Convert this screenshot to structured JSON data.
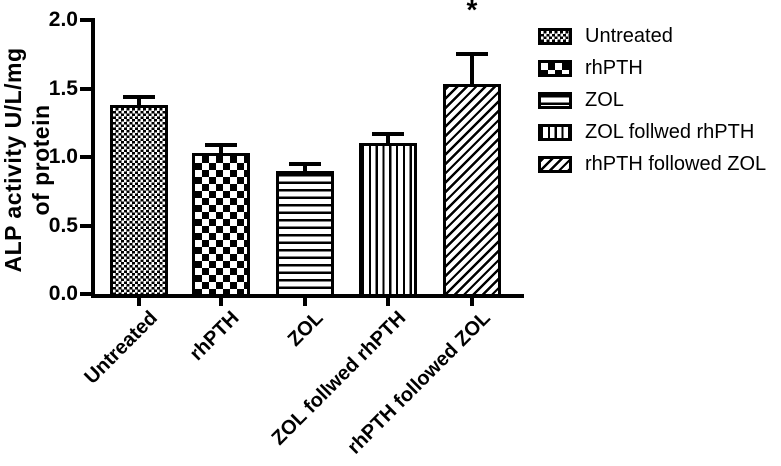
{
  "chart_data": {
    "type": "bar",
    "title": "",
    "xlabel": "",
    "ylabel": "ALP activity U/L/mg of protein",
    "ylabel_lines": [
      "ALP activity U/L/mg",
      "of protein"
    ],
    "ylim": [
      0.0,
      2.0
    ],
    "yticks": [
      "0.0",
      "0.5",
      "1.0",
      "1.5",
      "2.0"
    ],
    "ytick_values": [
      0.0,
      0.5,
      1.0,
      1.5,
      2.0
    ],
    "grid": false,
    "bar_outline_color": "#000000",
    "pattern_color": "#000000",
    "background_color": "#ffffff",
    "categories": [
      "Untreated",
      "rhPTH",
      "ZOL",
      "ZOL follwed rhPTH",
      "rhPTH followed ZOL"
    ],
    "values": [
      1.38,
      1.03,
      0.9,
      1.1,
      1.53
    ],
    "errors": [
      0.07,
      0.07,
      0.06,
      0.08,
      0.24
    ],
    "error_bar_style": "upper-cap",
    "patterns": [
      "fine-check",
      "check",
      "hlines",
      "vlines",
      "diag"
    ],
    "annotations": [
      {
        "text": "*",
        "category_index": 4
      }
    ],
    "legend": {
      "position": "right",
      "entries": [
        {
          "label": "Untreated",
          "pattern": "fine-check"
        },
        {
          "label": "rhPTH",
          "pattern": "check"
        },
        {
          "label": "ZOL",
          "pattern": "hlines"
        },
        {
          "label": "ZOL follwed rhPTH",
          "pattern": "vlines"
        },
        {
          "label": "rhPTH followed ZOL",
          "pattern": "diag"
        }
      ]
    }
  }
}
